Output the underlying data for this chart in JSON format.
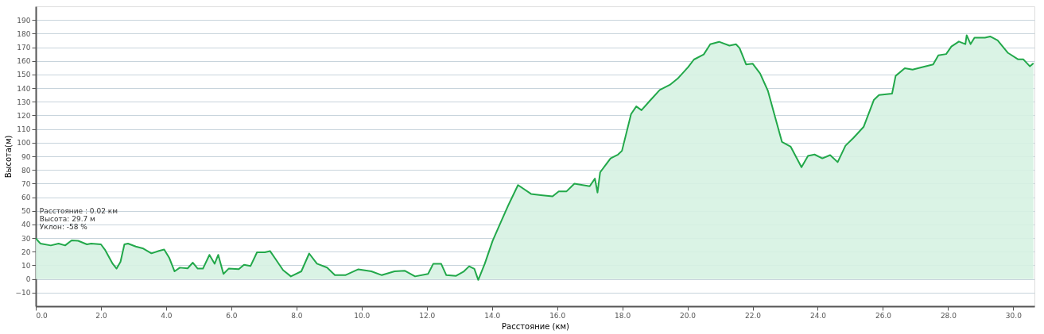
{
  "chart_data": {
    "type": "area",
    "xlabel": "Расстояние (км)",
    "ylabel": "Высота(м)",
    "x": [
      0,
      0.14,
      0.46,
      0.7,
      0.9,
      1.1,
      1.3,
      1.57,
      1.7,
      2.0,
      2.12,
      2.36,
      2.48,
      2.6,
      2.72,
      2.83,
      3.07,
      3.3,
      3.55,
      3.78,
      3.94,
      4.1,
      4.26,
      4.42,
      4.66,
      4.82,
      4.97,
      5.13,
      5.33,
      5.49,
      5.6,
      5.76,
      5.92,
      6.23,
      6.39,
      6.59,
      6.79,
      7.03,
      7.19,
      7.35,
      7.59,
      7.83,
      8.15,
      8.39,
      8.63,
      8.94,
      9.18,
      9.5,
      9.9,
      10.3,
      10.62,
      11.01,
      11.33,
      11.64,
      12.04,
      12.2,
      12.44,
      12.6,
      12.9,
      13.14,
      13.3,
      13.46,
      13.58,
      13.78,
      14.02,
      14.26,
      14.5,
      14.8,
      15.2,
      15.5,
      15.86,
      16.05,
      16.29,
      16.53,
      17.0,
      17.16,
      17.24,
      17.32,
      17.64,
      17.87,
      17.99,
      18.27,
      18.43,
      18.59,
      18.83,
      19.15,
      19.46,
      19.7,
      20.02,
      20.2,
      20.5,
      20.7,
      20.97,
      21.29,
      21.49,
      21.6,
      21.8,
      22.0,
      22.23,
      22.47,
      22.7,
      22.9,
      23.17,
      23.5,
      23.7,
      23.9,
      24.14,
      24.38,
      24.61,
      24.85,
      25.09,
      25.41,
      25.72,
      25.88,
      26.28,
      26.39,
      26.67,
      26.91,
      27.22,
      27.54,
      27.7,
      27.94,
      28.1,
      28.33,
      28.53,
      28.57,
      28.69,
      28.81,
      29.13,
      29.29,
      29.52,
      29.84,
      30.15,
      30.31,
      30.51,
      30.62
    ],
    "series": [
      {
        "color": "#22a84a",
        "values": [
          29.8,
          26,
          24.6,
          26,
          24.6,
          28.3,
          28,
          25.4,
          26,
          25.4,
          21.6,
          11.2,
          7.6,
          12.6,
          25.4,
          26,
          23.8,
          22.3,
          18.8,
          20.6,
          21.6,
          15.3,
          5.6,
          8.3,
          7.8,
          12,
          7.6,
          7.6,
          17.7,
          11.2,
          17.7,
          3.7,
          7.6,
          7.2,
          10.4,
          9.5,
          19.6,
          19.6,
          20.5,
          14.9,
          6.5,
          1.9,
          5.6,
          18.7,
          11.2,
          8.4,
          2.8,
          2.8,
          7.1,
          5.6,
          2.8,
          5.6,
          6,
          1.9,
          3.7,
          11.2,
          11.2,
          2.8,
          2.3,
          5.6,
          9.3,
          7.4,
          -0.7,
          11.2,
          27.9,
          41,
          54,
          68.9,
          62.4,
          61.5,
          60.6,
          64.3,
          64.3,
          69.9,
          68,
          73.6,
          63.4,
          78.2,
          88.5,
          91.3,
          94,
          121,
          126.6,
          123.8,
          130.3,
          138.7,
          142.4,
          147,
          155.4,
          161,
          164.7,
          172.2,
          174,
          171.2,
          172.2,
          169.4,
          157.4,
          158,
          150.8,
          138,
          118,
          100.6,
          97,
          82,
          90.3,
          91.3,
          88.5,
          90.9,
          85.7,
          97.8,
          103.4,
          111.7,
          131.3,
          135,
          136,
          149,
          154.6,
          153.6,
          155.5,
          157.4,
          164,
          165,
          170.5,
          174.2,
          172.3,
          178.8,
          172.3,
          177,
          177,
          177.9,
          175.1,
          165.8,
          161.1,
          161.1,
          156,
          158.3
        ]
      }
    ],
    "xlim": [
      0,
      30.65
    ],
    "ylim": [
      -20,
      200
    ],
    "xticks": [
      {
        "value": 0,
        "label": "0.0"
      },
      {
        "value": 2,
        "label": "2.0"
      },
      {
        "value": 4,
        "label": "4.0"
      },
      {
        "value": 6,
        "label": "6.0"
      },
      {
        "value": 8,
        "label": "8.0"
      },
      {
        "value": 10,
        "label": "10.0"
      },
      {
        "value": 12,
        "label": "12.0"
      },
      {
        "value": 14,
        "label": "14.0"
      },
      {
        "value": 16,
        "label": "16.0"
      },
      {
        "value": 18,
        "label": "18.0"
      },
      {
        "value": 20,
        "label": "20.0"
      },
      {
        "value": 22,
        "label": "22.0"
      },
      {
        "value": 24,
        "label": "24.0"
      },
      {
        "value": 26,
        "label": "26.0"
      },
      {
        "value": 28,
        "label": "28.0"
      },
      {
        "value": 30,
        "label": "30.0"
      }
    ],
    "yticks": [
      -10,
      0,
      10,
      20,
      30,
      40,
      50,
      60,
      70,
      80,
      90,
      100,
      110,
      120,
      130,
      140,
      150,
      160,
      170,
      180,
      190
    ],
    "grid": "y",
    "annotations": [
      {
        "text": "Расстояние : 0.02 км\nВысота: 29.7 м\nУклон: -58 %",
        "x": 0.02,
        "y": 29.7
      }
    ]
  }
}
